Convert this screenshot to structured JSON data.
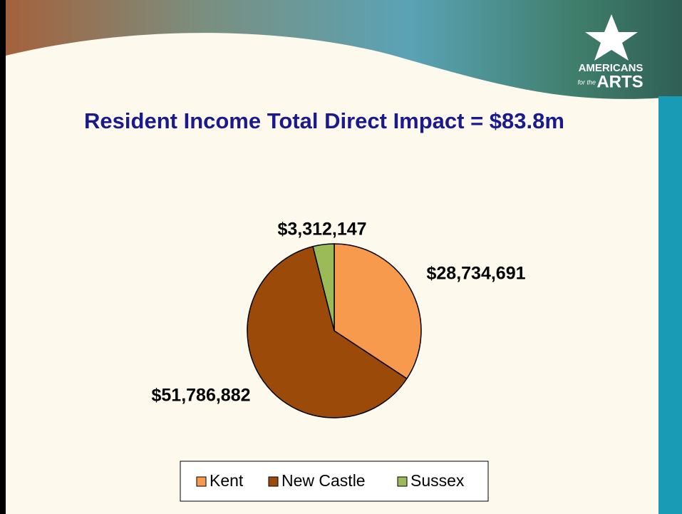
{
  "logo": {
    "line1": "AMERICANS",
    "line2": "for the",
    "line3": "ARTS"
  },
  "chart_data": {
    "type": "pie",
    "title": "Resident Income Total Direct Impact = $83.8m",
    "categories": [
      "Kent",
      "New Castle",
      "Sussex"
    ],
    "values": [
      28734691,
      51786882,
      3312147
    ],
    "value_labels": [
      "$28,734,691",
      "$51,786,882",
      "$3,312,147"
    ],
    "colors": [
      "#f79a4e",
      "#9b4a0a",
      "#9bbb59"
    ],
    "legend": "bottom"
  }
}
